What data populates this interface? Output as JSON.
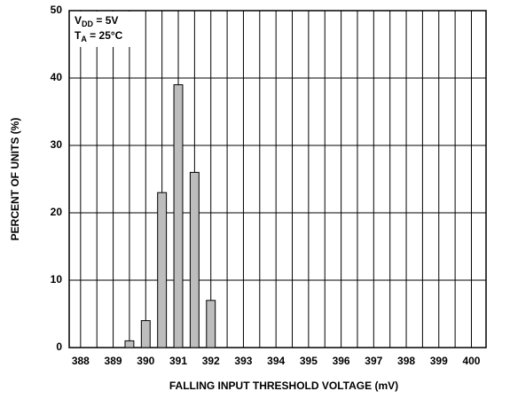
{
  "chart_data": {
    "type": "bar",
    "x": [
      389.5,
      390,
      390.5,
      391,
      391.5,
      392
    ],
    "values": [
      1,
      4,
      23,
      39,
      26,
      7
    ],
    "bar_width": 0.27,
    "color": "#bdbdbd",
    "xlim": [
      387.65,
      400.45
    ],
    "xticks": [
      388,
      389,
      390,
      391,
      392,
      393,
      394,
      395,
      396,
      397,
      398,
      399,
      400
    ],
    "xminorticks": [
      388.5,
      389.5,
      390.5,
      391.5,
      392.5,
      393.5,
      394.5,
      395.5,
      396.5,
      397.5,
      398.5,
      399.5
    ],
    "ylim": [
      0,
      50
    ],
    "yticks": [
      0,
      10,
      20,
      30,
      40,
      50
    ],
    "grid": true,
    "x_label": "FALLING INPUT THRESHOLD VOLTAGE (mV)",
    "y_label": "PERCENT OF UNITS (%)",
    "annotations": [
      {
        "main": "V",
        "sub": "DD",
        "rest": " = 5V"
      },
      {
        "main": "T",
        "sub": "A",
        "rest": " = 25°C"
      }
    ]
  }
}
